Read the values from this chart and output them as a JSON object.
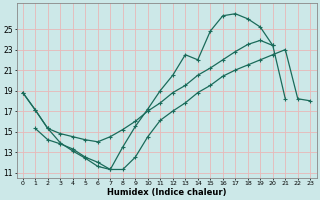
{
  "xlabel": "Humidex (Indice chaleur)",
  "bg_color": "#cce8e8",
  "grid_color": "#e8b8b8",
  "line_color": "#1a6b5a",
  "xlim": [
    -0.5,
    23.5
  ],
  "ylim": [
    10.5,
    27.5
  ],
  "yticks": [
    11,
    13,
    15,
    17,
    19,
    21,
    23,
    25
  ],
  "xticks": [
    0,
    1,
    2,
    3,
    4,
    5,
    6,
    7,
    8,
    9,
    10,
    11,
    12,
    13,
    14,
    15,
    16,
    17,
    18,
    19,
    20,
    21,
    22,
    23
  ],
  "line1_x": [
    0,
    1,
    2,
    3,
    4,
    5,
    6,
    7,
    8,
    9,
    10,
    11,
    12,
    13,
    14,
    15,
    16,
    17,
    18,
    19,
    20
  ],
  "line1_y": [
    18.8,
    17.1,
    15.3,
    13.9,
    13.1,
    12.4,
    11.6,
    11.3,
    13.5,
    15.5,
    17.2,
    19.0,
    20.5,
    22.5,
    22.0,
    24.8,
    26.3,
    26.5,
    26.0,
    25.2,
    23.4
  ],
  "line2_x": [
    0,
    1,
    2,
    3,
    4,
    5,
    6,
    7,
    8,
    9,
    10,
    11,
    12,
    13,
    14,
    15,
    16,
    17,
    18,
    19,
    20,
    21
  ],
  "line2_y": [
    18.8,
    17.1,
    15.3,
    14.8,
    14.5,
    14.2,
    14.0,
    14.5,
    15.2,
    16.0,
    17.0,
    17.8,
    18.8,
    19.5,
    20.5,
    21.2,
    22.0,
    22.8,
    23.5,
    23.9,
    23.4,
    18.2
  ],
  "line3_x": [
    1,
    2,
    3,
    4,
    5,
    6,
    7,
    8,
    9,
    10,
    11,
    12,
    13,
    14,
    15,
    16,
    17,
    18,
    19,
    20,
    21,
    22,
    23
  ],
  "line3_y": [
    15.3,
    14.2,
    13.8,
    13.3,
    12.5,
    12.0,
    11.3,
    11.3,
    12.5,
    14.5,
    16.1,
    17.0,
    17.8,
    18.8,
    19.5,
    20.4,
    21.0,
    21.5,
    22.0,
    22.5,
    23.0,
    18.2,
    18.0
  ]
}
